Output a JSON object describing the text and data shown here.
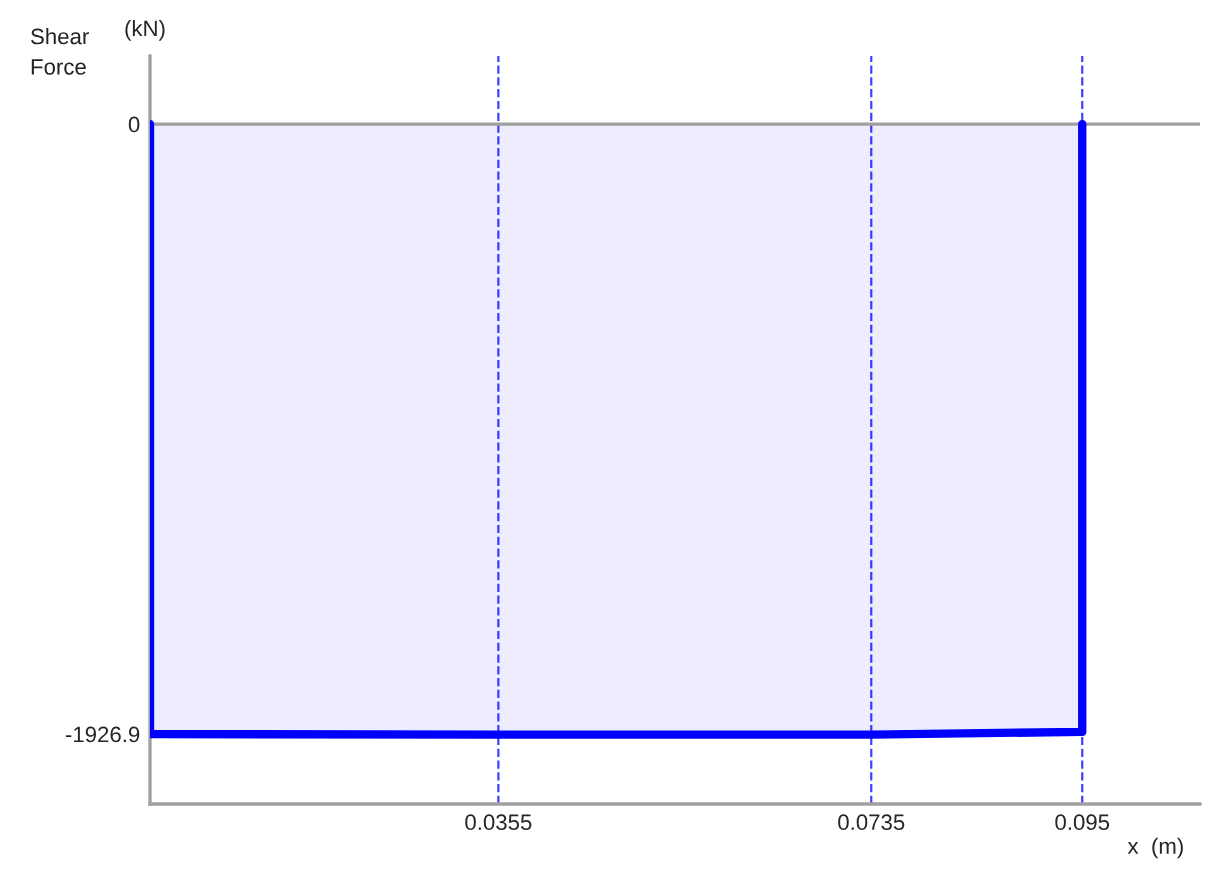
{
  "chart_data": {
    "type": "area",
    "ylabel": "Shear Force",
    "annotations": [
      "(kN)"
    ],
    "xlabel": "x  (m)",
    "series": [
      {
        "color": "#0000ff",
        "x": [
          0,
          0,
          0.0355,
          0.0735,
          0.095,
          0.095
        ],
        "values": [
          0,
          -1927,
          -1929,
          -1929,
          -1920,
          0
        ]
      }
    ],
    "xlim": [
      0,
      0.107
    ],
    "xticks": [
      0.0355,
      0.0735,
      0.095
    ],
    "ylim": [
      -2148,
      215
    ],
    "yticks": [
      0,
      -1926.9
    ],
    "grid": "x",
    "ref_lines": [
      {
        "axis": "y",
        "value": 0,
        "color": "#a0a0a0"
      }
    ]
  }
}
